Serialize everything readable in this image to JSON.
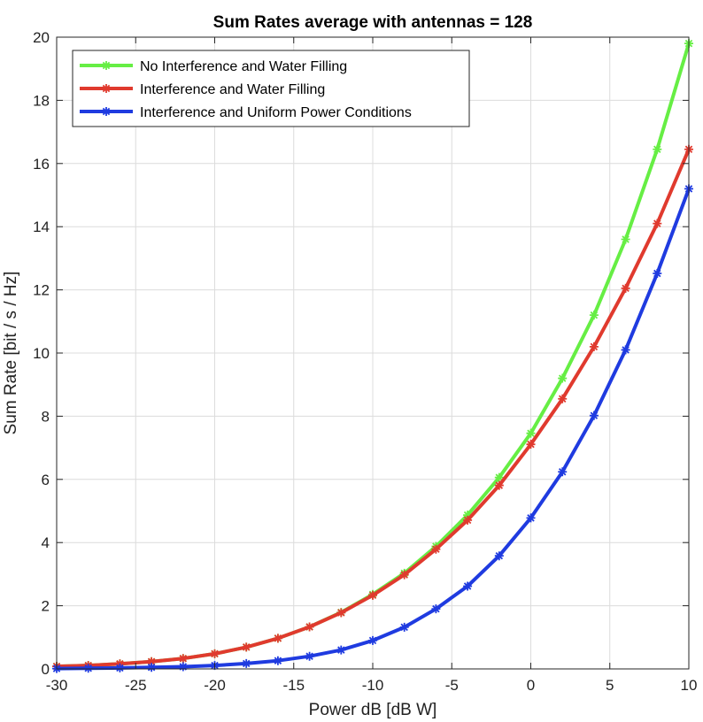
{
  "chart_data": {
    "type": "line",
    "title": "Sum Rates average with antennas = 128",
    "xlabel": "Power dB [dB W]",
    "ylabel": "Sum Rate [bit / s / Hz]",
    "xlim": [
      -30,
      10
    ],
    "ylim": [
      0,
      20
    ],
    "xticks": [
      -30,
      -25,
      -20,
      -15,
      -10,
      -5,
      0,
      5,
      10
    ],
    "yticks": [
      0,
      2,
      4,
      6,
      8,
      10,
      12,
      14,
      16,
      18,
      20
    ],
    "grid": true,
    "legend_position": "top-left",
    "x": [
      -30,
      -28,
      -26,
      -24,
      -22,
      -20,
      -18,
      -16,
      -14,
      -12,
      -10,
      -8,
      -6,
      -4,
      -2,
      0,
      2,
      4,
      6,
      8,
      10
    ],
    "series": [
      {
        "name": "No Interference and Water Filling",
        "color": "#66ee44",
        "marker": "asterisk",
        "values": [
          0.08,
          0.11,
          0.16,
          0.23,
          0.33,
          0.48,
          0.69,
          0.97,
          1.33,
          1.79,
          2.36,
          3.03,
          3.88,
          4.87,
          6.06,
          7.46,
          9.2,
          11.2,
          13.6,
          16.45,
          19.8
        ]
      },
      {
        "name": "Interference and Water Filling",
        "color": "#e03a2e",
        "marker": "asterisk",
        "values": [
          0.08,
          0.11,
          0.16,
          0.23,
          0.33,
          0.48,
          0.69,
          0.97,
          1.33,
          1.78,
          2.33,
          2.98,
          3.79,
          4.71,
          5.81,
          7.11,
          8.55,
          10.2,
          12.05,
          14.1,
          16.45
        ]
      },
      {
        "name": "Interference and Uniform Power Conditions",
        "color": "#1f3be0",
        "marker": "asterisk",
        "values": [
          0.01,
          0.02,
          0.03,
          0.05,
          0.07,
          0.11,
          0.17,
          0.26,
          0.4,
          0.6,
          0.9,
          1.32,
          1.9,
          2.62,
          3.58,
          4.78,
          6.24,
          8.02,
          10.1,
          12.52,
          15.2
        ]
      }
    ]
  }
}
